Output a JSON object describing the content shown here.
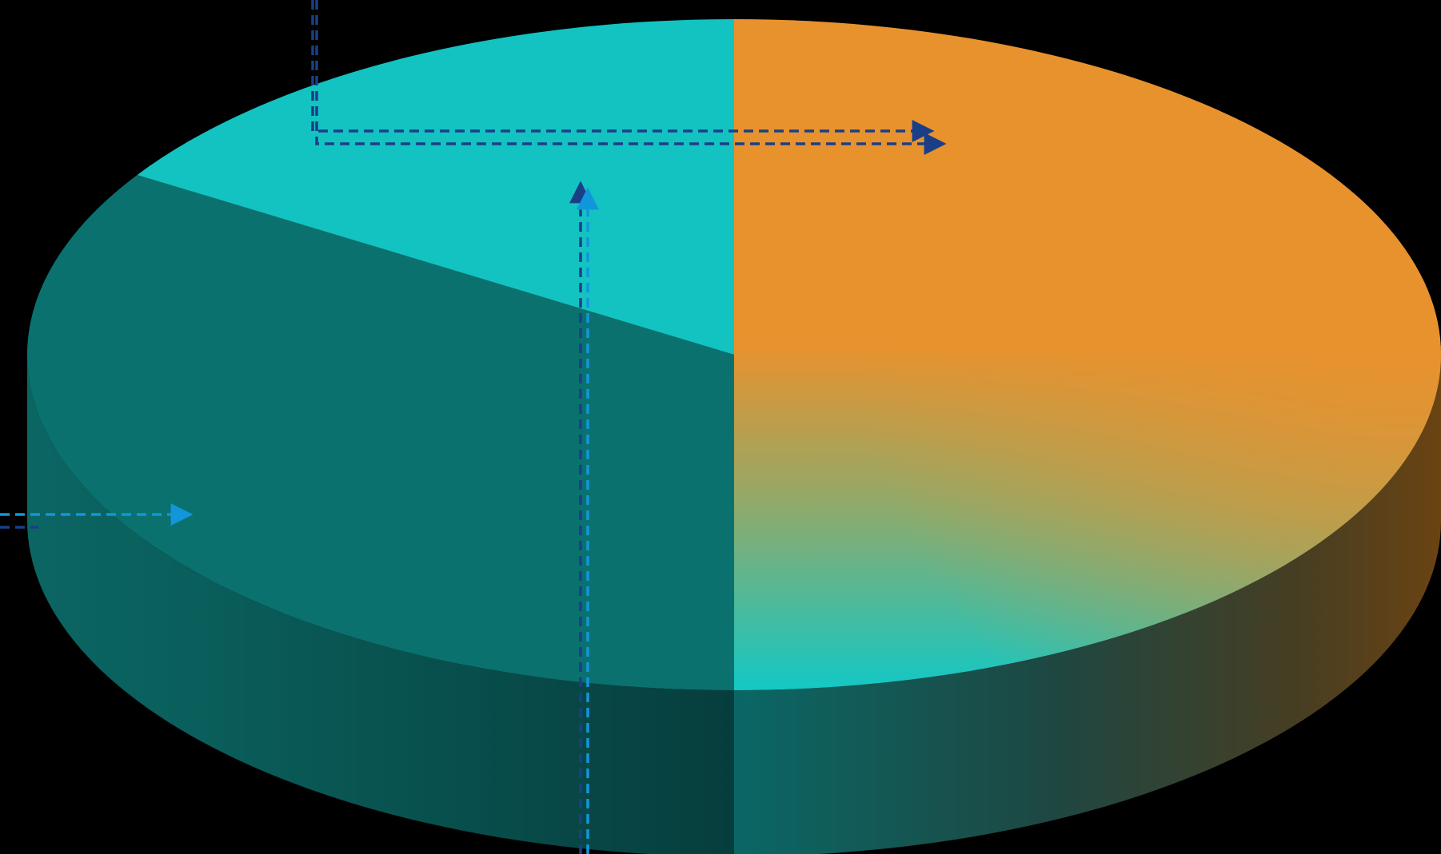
{
  "chart_data": {
    "type": "pie",
    "style": "3d",
    "title": "",
    "series": [
      {
        "categories": [
          "",
          "",
          ""
        ],
        "values": [
          50,
          34,
          16
        ],
        "colors": [
          "#E8922E",
          "#0A716E",
          "#12C3C1"
        ]
      }
    ],
    "legend": "none",
    "data_labels": "none"
  },
  "colors": {
    "background": "#000000",
    "orange": "#E8922E",
    "teal_dark": "#0A716E",
    "teal_light": "#12C3C1",
    "leader_dark": "#1B3F86",
    "leader_light": "#1296DB"
  }
}
